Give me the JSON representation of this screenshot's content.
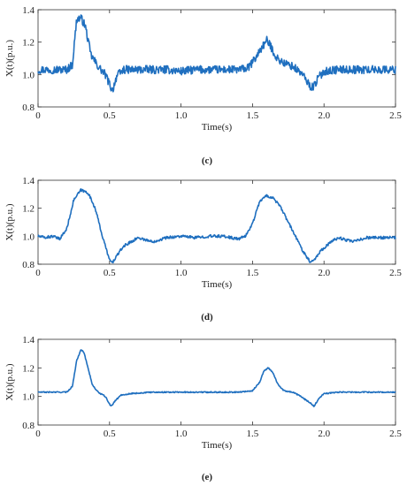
{
  "colors": {
    "line": "#1f6fbf",
    "axis": "#333333",
    "background": "#ffffff"
  },
  "chart_data": [
    {
      "type": "line",
      "panel_tag": "(c)",
      "xlabel": "Time(s)",
      "ylabel": "X(t)(p.u.)",
      "xlim": [
        0,
        2.5
      ],
      "ylim": [
        0.8,
        1.4
      ],
      "xticks": [
        "0",
        "0.5",
        "1.0",
        "1.5",
        "2.0",
        "2.5"
      ],
      "yticks": [
        "0.8",
        "1.0",
        "1.2",
        "1.4"
      ],
      "grid": false,
      "noise": 0.025,
      "series": [
        {
          "x": [
            0,
            0.2,
            0.24,
            0.27,
            0.3,
            0.33,
            0.37,
            0.42,
            0.47,
            0.5,
            0.52,
            0.55,
            0.6,
            0.7,
            0.8,
            0.9,
            1.0,
            1.1,
            1.2,
            1.3,
            1.4,
            1.47,
            1.52,
            1.56,
            1.6,
            1.63,
            1.67,
            1.72,
            1.78,
            1.84,
            1.88,
            1.91,
            1.93,
            1.96,
            2.0,
            2.1,
            2.5
          ],
          "values": [
            1.03,
            1.03,
            1.06,
            1.34,
            1.35,
            1.3,
            1.12,
            1.05,
            1.0,
            0.94,
            0.9,
            0.99,
            1.03,
            1.03,
            1.03,
            1.03,
            1.02,
            1.03,
            1.03,
            1.03,
            1.03,
            1.04,
            1.1,
            1.16,
            1.21,
            1.17,
            1.1,
            1.07,
            1.05,
            1.01,
            0.96,
            0.92,
            0.93,
            0.98,
            1.02,
            1.03,
            1.03
          ]
        }
      ]
    },
    {
      "type": "line",
      "panel_tag": "(d)",
      "xlabel": "Time(s)",
      "ylabel": "X(t)(p.u.)",
      "xlim": [
        0,
        2.5
      ],
      "ylim": [
        0.8,
        1.4
      ],
      "xticks": [
        "0",
        "0.5",
        "1.0",
        "1.5",
        "2.0",
        "2.5"
      ],
      "yticks": [
        "0.8",
        "1.0",
        "1.2",
        "1.4"
      ],
      "grid": false,
      "noise": 0.01,
      "series": [
        {
          "x": [
            0,
            0.05,
            0.1,
            0.15,
            0.2,
            0.25,
            0.3,
            0.35,
            0.4,
            0.45,
            0.5,
            0.52,
            0.55,
            0.6,
            0.7,
            0.8,
            0.9,
            1.0,
            1.1,
            1.2,
            1.3,
            1.4,
            1.45,
            1.5,
            1.55,
            1.6,
            1.65,
            1.7,
            1.75,
            1.8,
            1.85,
            1.9,
            1.93,
            1.98,
            2.05,
            2.1,
            2.2,
            2.3,
            2.5
          ],
          "values": [
            1.0,
            0.99,
            1.0,
            0.98,
            1.05,
            1.26,
            1.33,
            1.31,
            1.2,
            1.0,
            0.83,
            0.81,
            0.86,
            0.93,
            0.99,
            0.96,
            0.99,
            1.0,
            0.99,
            1.0,
            1.0,
            0.98,
            1.0,
            1.09,
            1.25,
            1.29,
            1.27,
            1.2,
            1.1,
            1.0,
            0.9,
            0.82,
            0.83,
            0.9,
            0.96,
            0.99,
            0.96,
            0.99,
            0.99
          ]
        }
      ]
    },
    {
      "type": "line",
      "panel_tag": "(e)",
      "xlabel": "Time(s)",
      "ylabel": "X(t)(p.u.)",
      "xlim": [
        0,
        2.5
      ],
      "ylim": [
        0.8,
        1.4
      ],
      "xticks": [
        "0",
        "0.5",
        "1.0",
        "1.5",
        "2.0",
        "2.5"
      ],
      "yticks": [
        "0.8",
        "1.0",
        "1.2",
        "1.4"
      ],
      "grid": false,
      "noise": 0.004,
      "series": [
        {
          "x": [
            0,
            0.2,
            0.24,
            0.27,
            0.3,
            0.32,
            0.35,
            0.38,
            0.42,
            0.47,
            0.51,
            0.54,
            0.58,
            0.65,
            0.8,
            1.0,
            1.2,
            1.4,
            1.5,
            1.55,
            1.58,
            1.61,
            1.64,
            1.68,
            1.72,
            1.78,
            1.84,
            1.88,
            1.91,
            1.93,
            1.96,
            2.0,
            2.1,
            2.5
          ],
          "values": [
            1.03,
            1.03,
            1.07,
            1.25,
            1.33,
            1.31,
            1.2,
            1.08,
            1.03,
            1.0,
            0.93,
            0.97,
            1.01,
            1.02,
            1.03,
            1.03,
            1.03,
            1.03,
            1.04,
            1.1,
            1.18,
            1.2,
            1.17,
            1.08,
            1.04,
            1.03,
            1.0,
            0.97,
            0.95,
            0.93,
            0.98,
            1.02,
            1.03,
            1.03
          ]
        }
      ]
    }
  ]
}
